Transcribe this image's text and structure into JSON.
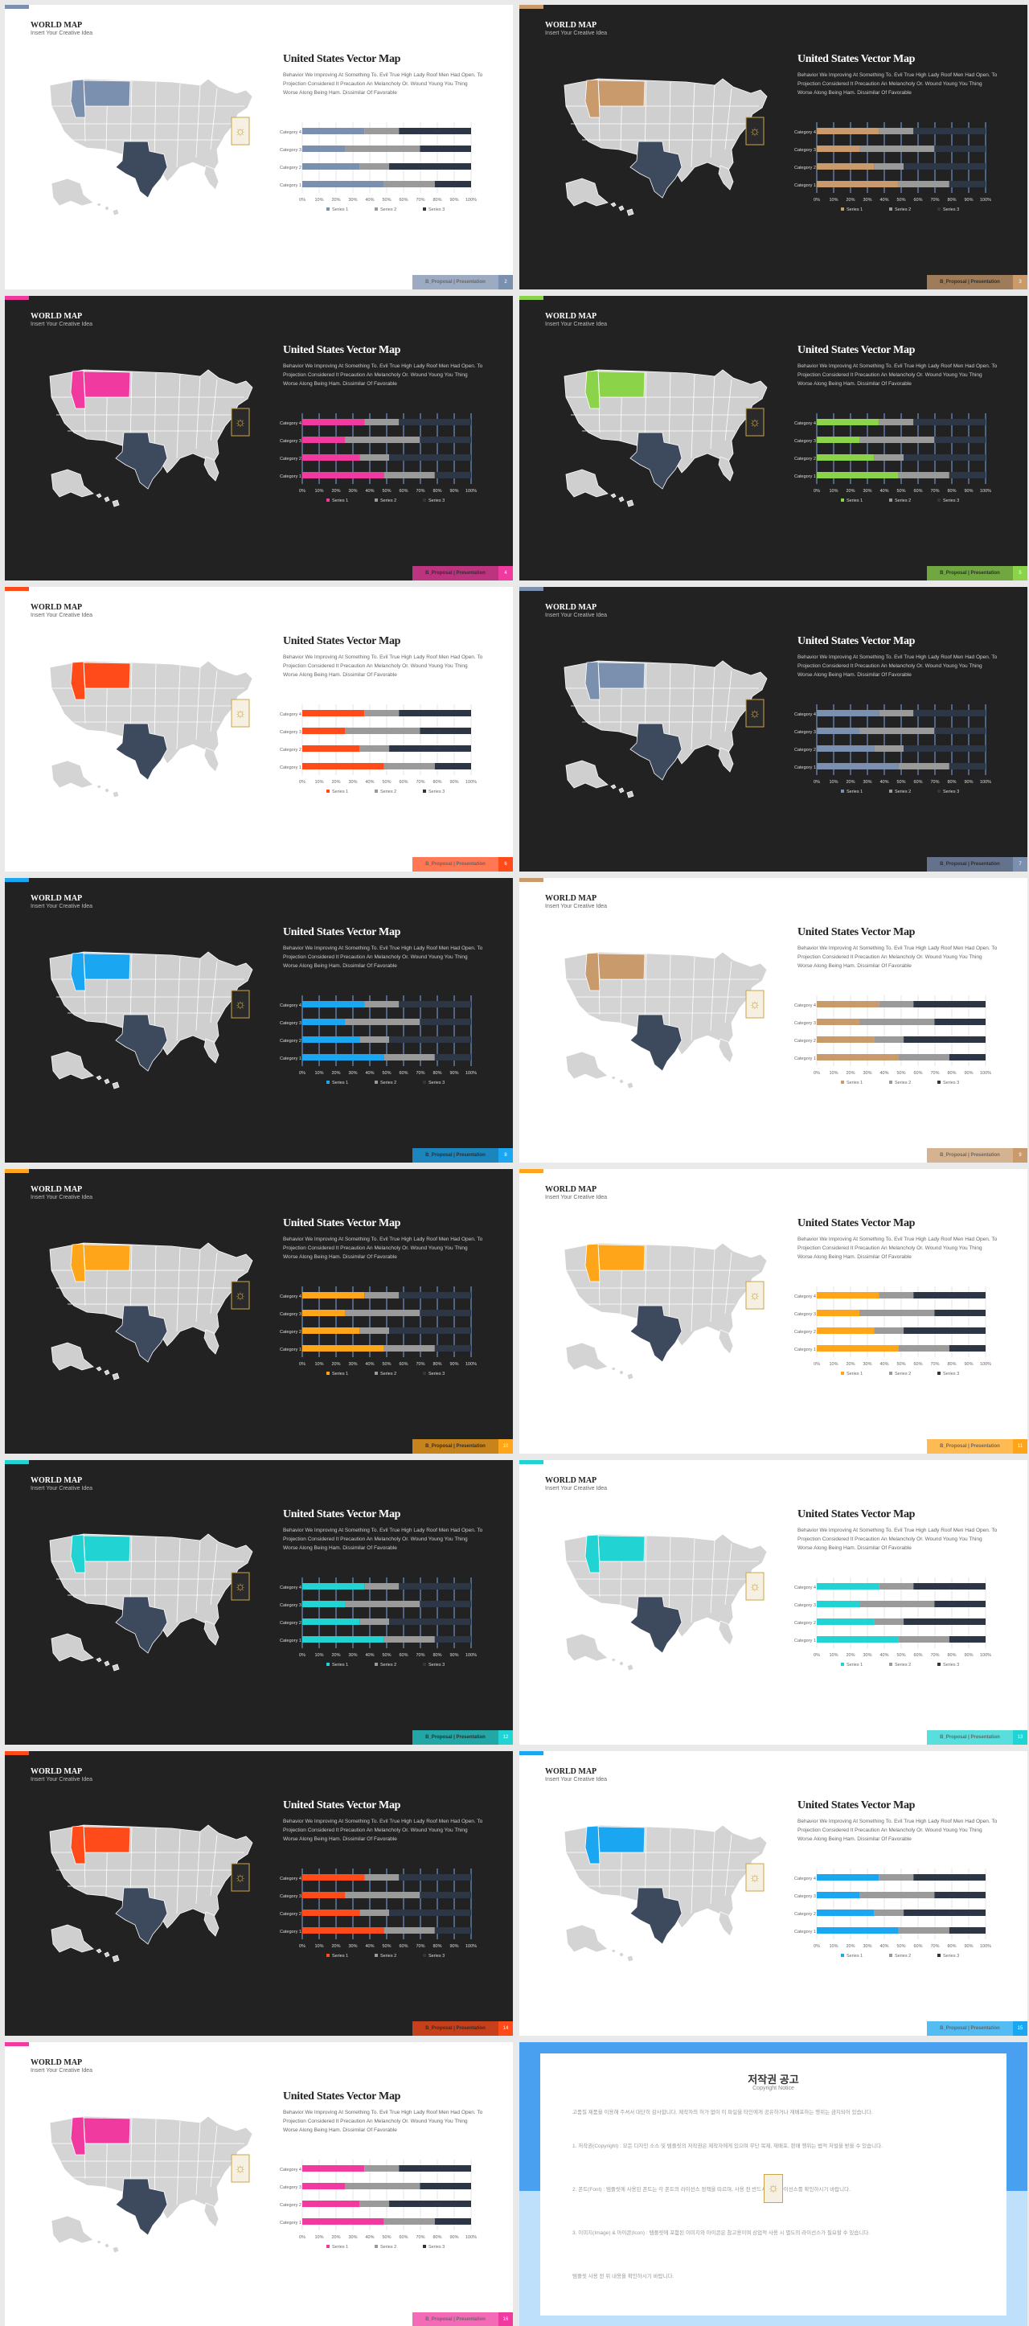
{
  "slides": [
    {
      "theme": "light",
      "accent": "#7b8fae",
      "footer_label": "B_Proposal | Presentation",
      "page": "2"
    },
    {
      "theme": "dark",
      "accent": "#c89a6c",
      "footer_label": "B_Proposal | Presentation",
      "page": "3"
    },
    {
      "theme": "dark",
      "accent": "#f03aa0",
      "footer_label": "B_Proposal | Presentation",
      "page": "4"
    },
    {
      "theme": "dark",
      "accent": "#8bd44a",
      "footer_label": "B_Proposal | Presentation",
      "page": "5"
    },
    {
      "theme": "light",
      "accent": "#ff4a1a",
      "footer_label": "B_Proposal | Presentation",
      "page": "6"
    },
    {
      "theme": "dark",
      "accent": "#7b8fae",
      "footer_label": "B_Proposal | Presentation",
      "page": "7"
    },
    {
      "theme": "dark",
      "accent": "#1aa6f0",
      "footer_label": "B_Proposal | Presentation",
      "page": "8"
    },
    {
      "theme": "light",
      "accent": "#c89a6c",
      "footer_label": "B_Proposal | Presentation",
      "page": "9"
    },
    {
      "theme": "dark",
      "accent": "#ffa51a",
      "footer_label": "B_Proposal | Presentation",
      "page": "10"
    },
    {
      "theme": "light",
      "accent": "#ffa51a",
      "footer_label": "B_Proposal | Presentation",
      "page": "11"
    },
    {
      "theme": "dark",
      "accent": "#22d3d3",
      "footer_label": "B_Proposal | Presentation",
      "page": "12"
    },
    {
      "theme": "light",
      "accent": "#22d3d3",
      "footer_label": "B_Proposal | Presentation",
      "page": "13"
    },
    {
      "theme": "dark",
      "accent": "#ff4a1a",
      "footer_label": "B_Proposal | Presentation",
      "page": "14"
    },
    {
      "theme": "light",
      "accent": "#1aa6f0",
      "footer_label": "B_Proposal | Presentation",
      "page": "15"
    },
    {
      "theme": "light",
      "accent": "#f03aa0",
      "footer_label": "B_Proposal | Presentation",
      "page": "16"
    }
  ],
  "common": {
    "section_title": "WORLD MAP",
    "section_subtitle": "Insert Your Creative Idea",
    "heading": "United States Vector Map",
    "body": "Behavior We Improving At Something To. Evil True High Lady Roof Men Had Open. To Projection Considered It Precaution An Melancholy Or. Wound Young You Thing Worse Along Being Ham. Dissimilar Of Favorable",
    "texas_color": "#3d4a5e",
    "map_light_fill": "#d4d4d4",
    "map_dark_fill": "#cfcfcf"
  },
  "chart_data": {
    "type": "bar",
    "orientation": "horizontal-stacked-100",
    "categories": [
      "Category 4",
      "Category 3",
      "Category 2",
      "Category 1"
    ],
    "series": [
      {
        "name": "Series 1",
        "values": [
          4.3,
          2.5,
          3.5,
          4.5
        ]
      },
      {
        "name": "Series 2",
        "values": [
          2.4,
          4.4,
          1.8,
          2.8
        ]
      },
      {
        "name": "Series 3",
        "values": [
          5,
          3,
          5,
          2
        ]
      }
    ],
    "ticks": [
      "0%",
      "10%",
      "20%",
      "30%",
      "40%",
      "50%",
      "60%",
      "70%",
      "80%",
      "90%",
      "100%"
    ],
    "xlim": [
      0,
      100
    ],
    "legend": "bottom",
    "series_colors_other": [
      "#9a9a9a",
      "#2d3644"
    ]
  },
  "copyright": {
    "title": "저작권 공고",
    "subtitle": "Copyright Notice",
    "paras": [
      "고품질 제품을 이용해 주셔서 대단히 감사합니다. 제작자의 허가 없이 이 파일을 타인에게 공유하거나 재배포하는 행위는 금지되어 있습니다.",
      "1. 저작권(Copyright) : 모든 디자인 소스 및 템플릿의 저작권은 제작자에게 있으며 무단 복제, 재배포, 판매 행위는 법적 처벌을 받을 수 있습니다.",
      "2. 폰트(Font) : 템플릿에 사용된 폰트는 각 폰트의 라이선스 정책을 따르며, 사용 전 반드시 해당 라이선스를 확인하시기 바랍니다.",
      "3. 이미지(Image) & 아이콘(Icon) : 템플릿에 포함된 이미지와 아이콘은 참고용이며 상업적 사용 시 별도의 라이선스가 필요할 수 있습니다.",
      "템플릿 사용 전 위 내용을 확인하시기 바랍니다."
    ]
  }
}
